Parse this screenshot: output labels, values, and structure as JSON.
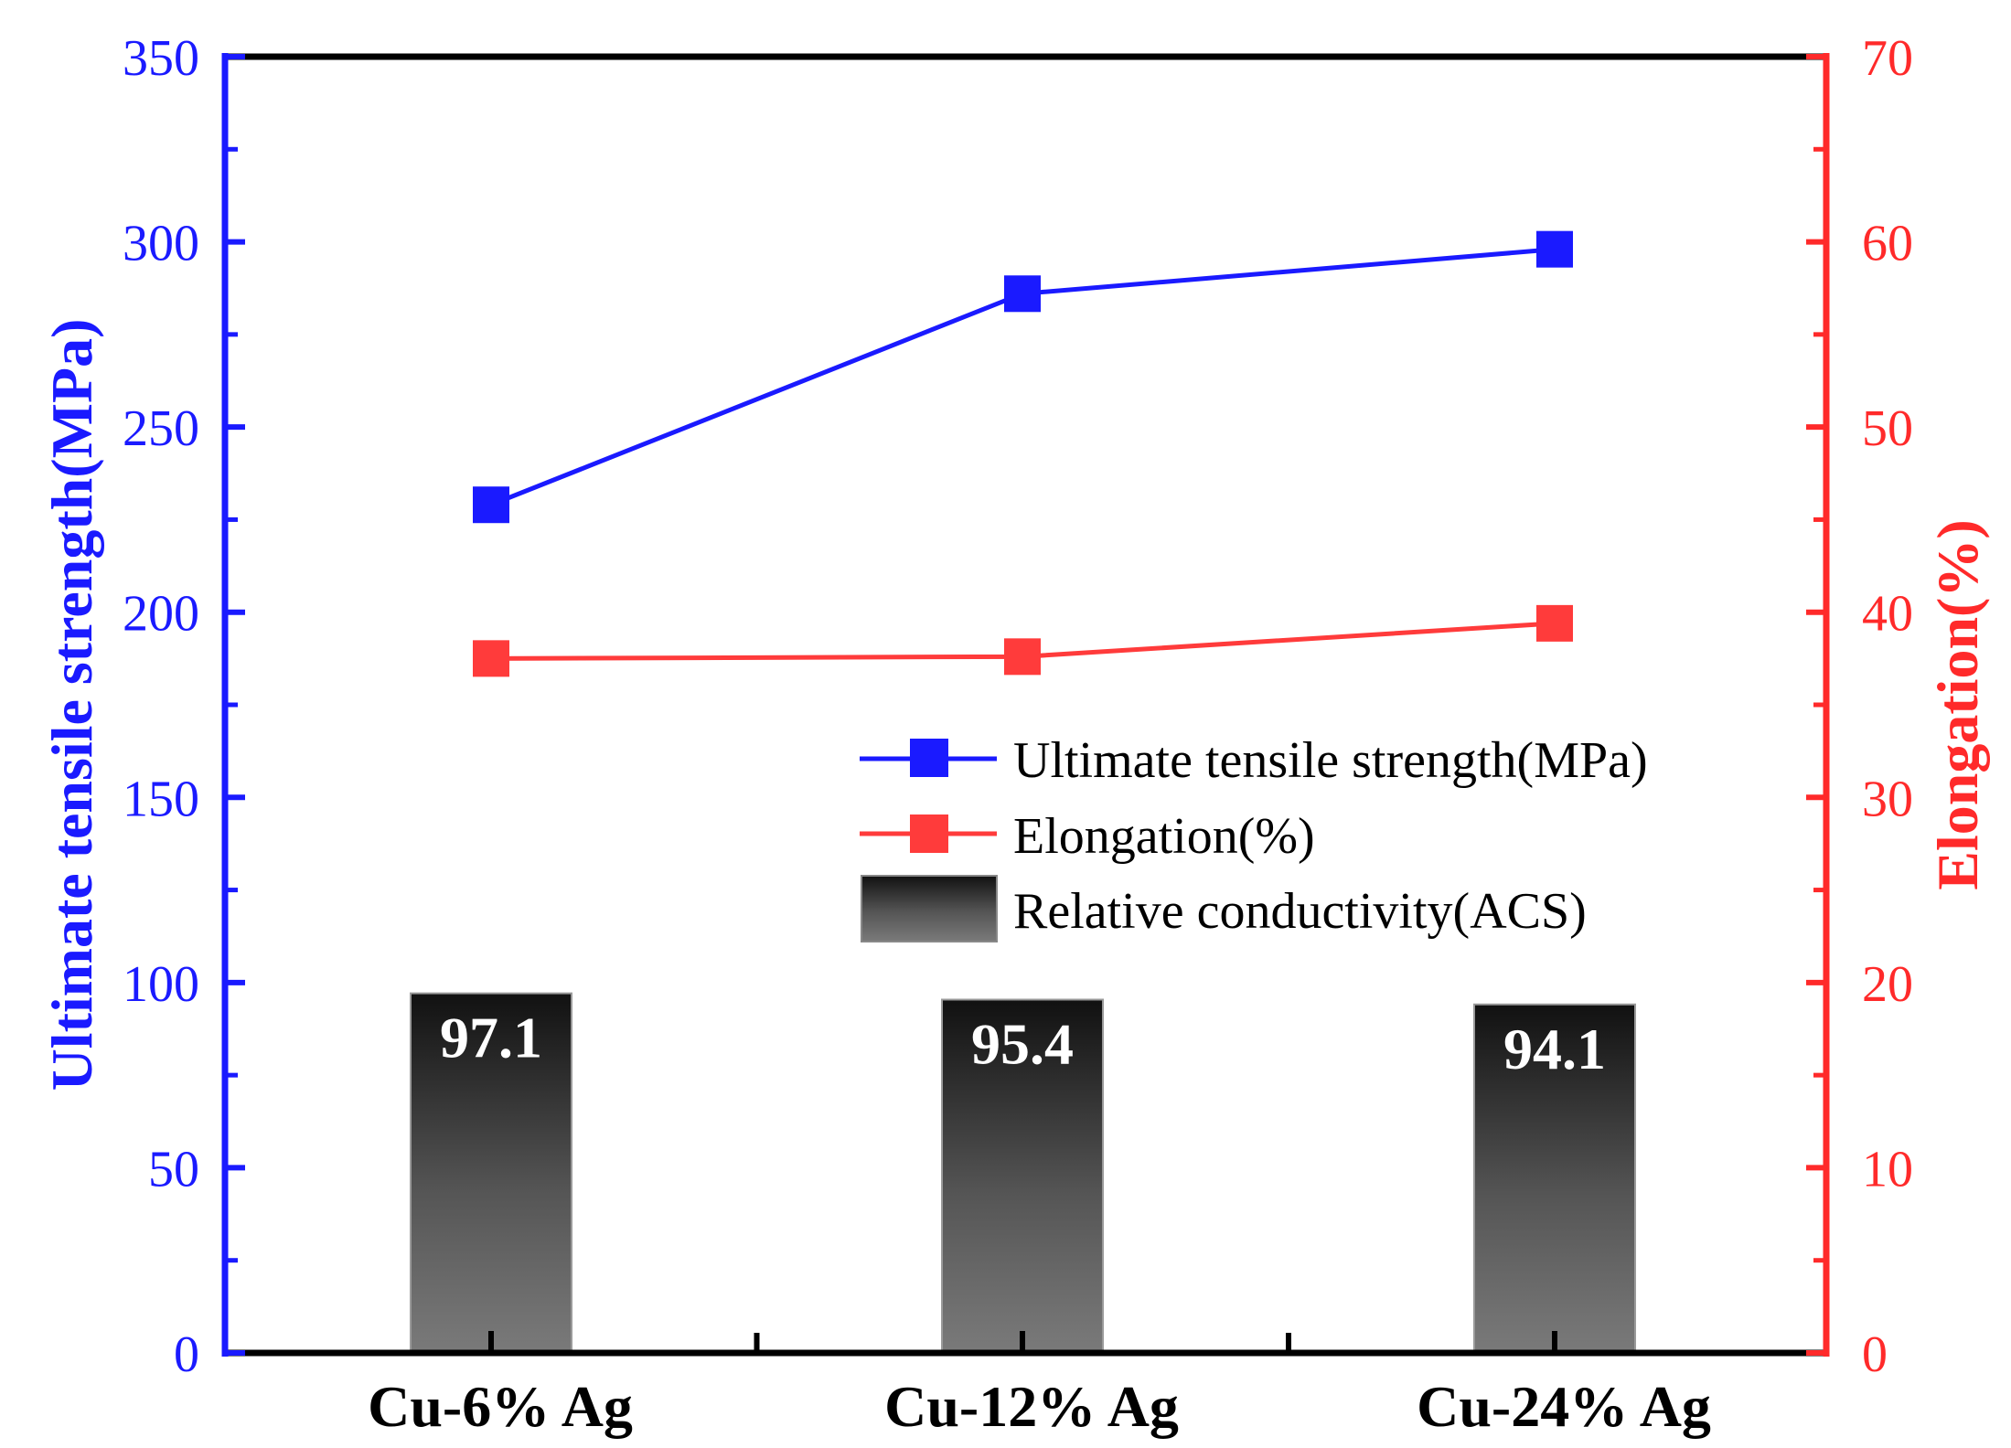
{
  "chart_data": {
    "type": "bar+line",
    "categories": [
      "Cu-6% Ag",
      "Cu-12% Ag",
      "Cu-24% Ag"
    ],
    "left_axis": {
      "title": "Ultimate tensile strength(MPa)",
      "ylim": [
        0,
        350
      ],
      "ticks": [
        "0",
        "50",
        "100",
        "150",
        "200",
        "250",
        "300",
        "350"
      ],
      "color": "#1a1aff"
    },
    "right_axis": {
      "title": "Elongation(%)",
      "ylim": [
        0,
        70
      ],
      "ticks": [
        "0",
        "10",
        "20",
        "30",
        "40",
        "50",
        "60",
        "70"
      ],
      "color": "#ff2a2a"
    },
    "series": [
      {
        "name": "Ultimate tensile strength(MPa)",
        "kind": "line",
        "axis": "left",
        "color": "#1a1aff",
        "values": [
          229,
          286,
          298
        ]
      },
      {
        "name": "Elongation(%)",
        "kind": "line",
        "axis": "right",
        "color": "#ff3b3b",
        "values": [
          37.5,
          37.6,
          39.4
        ]
      },
      {
        "name": "Relative conductivity(ACS)",
        "kind": "bar",
        "axis": "left",
        "color": "gradient-gray",
        "values": [
          97.1,
          95.4,
          94.1
        ],
        "labels": [
          "97.1",
          "95.4",
          "94.1"
        ]
      }
    ],
    "legend_position": "center-right"
  }
}
